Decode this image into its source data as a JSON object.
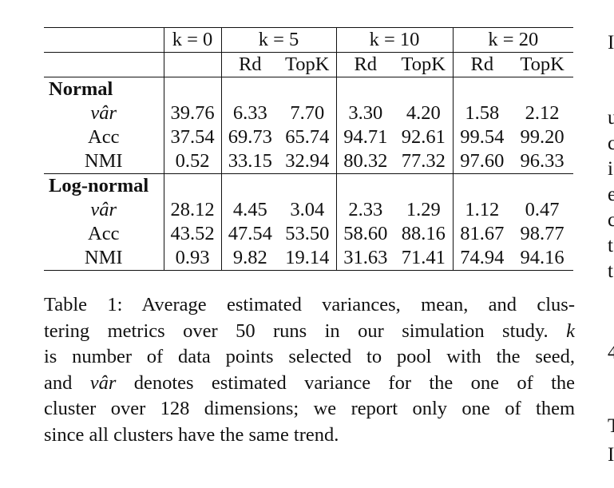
{
  "table": {
    "header_groups": [
      "k = 0",
      "k = 5",
      "k = 10",
      "k = 20"
    ],
    "subheaders": [
      "Rd",
      "TopK",
      "Rd",
      "TopK",
      "Rd",
      "TopK"
    ],
    "groups": [
      {
        "name": "Normal",
        "rows": [
          {
            "metric": "vâr",
            "values": [
              "39.76",
              "6.33",
              "7.70",
              "3.30",
              "4.20",
              "1.58",
              "2.12"
            ]
          },
          {
            "metric": "Acc",
            "values": [
              "37.54",
              "69.73",
              "65.74",
              "94.71",
              "92.61",
              "99.54",
              "99.20"
            ]
          },
          {
            "metric": "NMI",
            "values": [
              "0.52",
              "33.15",
              "32.94",
              "80.32",
              "77.32",
              "97.60",
              "96.33"
            ]
          }
        ]
      },
      {
        "name": "Log-normal",
        "rows": [
          {
            "metric": "vâr",
            "values": [
              "28.12",
              "4.45",
              "3.04",
              "2.33",
              "1.29",
              "1.12",
              "0.47"
            ]
          },
          {
            "metric": "Acc",
            "values": [
              "43.52",
              "47.54",
              "53.50",
              "58.60",
              "88.16",
              "81.67",
              "98.77"
            ]
          },
          {
            "metric": "NMI",
            "values": [
              "0.93",
              "9.82",
              "19.14",
              "31.63",
              "71.41",
              "74.94",
              "94.16"
            ]
          }
        ]
      }
    ]
  },
  "caption": {
    "line1": "Table 1: Average estimated variances, mean, and clus-",
    "line2_a": "tering metrics over 50 runs in our simulation study.",
    "line2_k": "k",
    "line3": "is number of data points selected to pool with the seed,",
    "line4_a": "and",
    "line4_var": "vâr",
    "line4_b": "denotes estimated variance for the one of the",
    "line5": "cluster over 128 dimensions; we report only one of them",
    "line6": "since all clusters have the same trend."
  },
  "side_letters": [
    "I",
    "u",
    "c",
    "i",
    "e",
    "c",
    "t",
    "t",
    "4",
    "T",
    "I"
  ]
}
